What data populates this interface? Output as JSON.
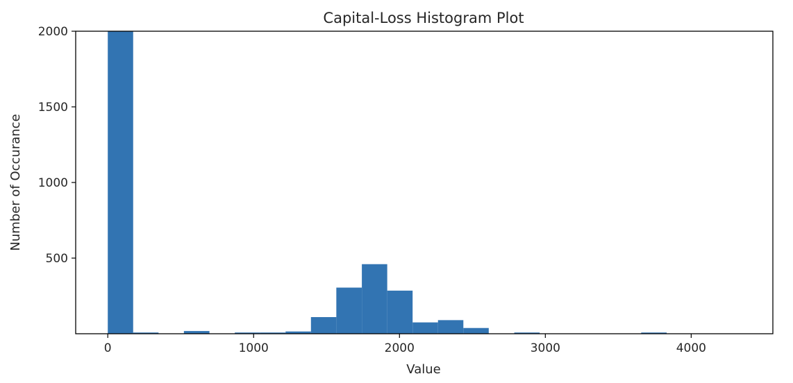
{
  "chart_data": {
    "type": "bar",
    "title": "Capital-Loss Histogram Plot",
    "xlabel": "Value",
    "ylabel": "Number of Occurance",
    "xlim": [
      -220,
      4560
    ],
    "ylim": [
      0,
      2000
    ],
    "xticks": [
      0,
      1000,
      2000,
      3000,
      4000
    ],
    "xtick_labels": [
      "0",
      "1000",
      "2000",
      "3000",
      "4000"
    ],
    "yticks": [
      500,
      1000,
      1500,
      2000
    ],
    "ytick_labels": [
      "500",
      "1000",
      "1500",
      "2000"
    ],
    "grid": false,
    "bar_color": "#3274b2",
    "bins": [
      {
        "x0": 0,
        "x1": 174,
        "count": 2000
      },
      {
        "x0": 174,
        "x1": 348,
        "count": 8
      },
      {
        "x0": 348,
        "x1": 522,
        "count": 0
      },
      {
        "x0": 522,
        "x1": 697,
        "count": 18
      },
      {
        "x0": 697,
        "x1": 871,
        "count": 0
      },
      {
        "x0": 871,
        "x1": 1045,
        "count": 8
      },
      {
        "x0": 1045,
        "x1": 1219,
        "count": 8
      },
      {
        "x0": 1219,
        "x1": 1393,
        "count": 15
      },
      {
        "x0": 1393,
        "x1": 1567,
        "count": 110
      },
      {
        "x0": 1567,
        "x1": 1742,
        "count": 305
      },
      {
        "x0": 1742,
        "x1": 1916,
        "count": 460
      },
      {
        "x0": 1916,
        "x1": 2090,
        "count": 285
      },
      {
        "x0": 2090,
        "x1": 2264,
        "count": 75
      },
      {
        "x0": 2264,
        "x1": 2438,
        "count": 90
      },
      {
        "x0": 2438,
        "x1": 2612,
        "count": 38
      },
      {
        "x0": 2612,
        "x1": 2787,
        "count": 0
      },
      {
        "x0": 2787,
        "x1": 2961,
        "count": 8
      },
      {
        "x0": 2961,
        "x1": 3135,
        "count": 0
      },
      {
        "x0": 3135,
        "x1": 3309,
        "count": 0
      },
      {
        "x0": 3309,
        "x1": 3483,
        "count": 0
      },
      {
        "x0": 3483,
        "x1": 3657,
        "count": 0
      },
      {
        "x0": 3657,
        "x1": 3832,
        "count": 8
      },
      {
        "x0": 3832,
        "x1": 4006,
        "count": 0
      },
      {
        "x0": 4006,
        "x1": 4180,
        "count": 0
      },
      {
        "x0": 4180,
        "x1": 4354,
        "count": 0
      }
    ]
  }
}
